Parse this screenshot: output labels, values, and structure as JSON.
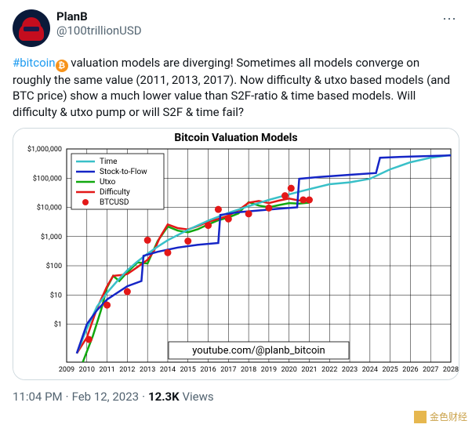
{
  "author": {
    "display_name": "PlanB",
    "handle": "@100trillionUSD",
    "avatar_bg": "#0a1a3a",
    "avatar_cap": "#c40d1e"
  },
  "tweet": {
    "hashtag": "#bitcoin",
    "body_after_hashtag": "  valuation models are diverging! Sometimes all models converge on roughly the same value (2011, 2013, 2017). Now difficulty & utxo based models (and BTC price) show a much lower value than S2F-ratio & time based models. Will difficulty & utxo pump or will S2F & time fail?",
    "time": "11:04 PM",
    "date": "Feb 12, 2023",
    "views_count": "12.3K",
    "views_label": "Views"
  },
  "chart": {
    "title": "Bitcoin Valuation Models",
    "x_axis": {
      "min": 2009,
      "max": 2028,
      "tick_step": 1
    },
    "y_axis": {
      "ticks": [
        1,
        10,
        100,
        1000,
        10000,
        100000,
        1000000
      ],
      "tick_labels": [
        "$1",
        "$10",
        "$100",
        "$1,000",
        "$10,000",
        "$100,000",
        "$1,000,000"
      ]
    },
    "font": {
      "title_size": 14,
      "title_weight": "bold",
      "axis_size": 9,
      "legend_size": 10
    },
    "colors": {
      "background": "#ffffff",
      "grid": "#000000",
      "axis": "#000000",
      "watermark_text": "#000000",
      "time": "#39c0c8",
      "s2f": "#1525c6",
      "utxo": "#11a80f",
      "difficulty": "#e31818",
      "btcusd": "#e31818"
    },
    "line_width": {
      "time": 2.5,
      "s2f": 2.5,
      "utxo": 2.5,
      "difficulty": 2.5
    },
    "marker": {
      "btcusd_radius": 4.5
    },
    "legend": {
      "position": "top-left",
      "items": [
        {
          "label": "Time",
          "type": "line",
          "color_key": "time"
        },
        {
          "label": "Stock-to-Flow",
          "type": "line",
          "color_key": "s2f"
        },
        {
          "label": "Utxo",
          "type": "line",
          "color_key": "utxo"
        },
        {
          "label": "Difficulty",
          "type": "line",
          "color_key": "difficulty"
        },
        {
          "label": "BTCUSD",
          "type": "marker",
          "color_key": "btcusd"
        }
      ]
    },
    "watermark": "youtube.com/@planb_bitcoin",
    "series": {
      "time": [
        [
          2009.5,
          0.1
        ],
        [
          2010.0,
          0.7
        ],
        [
          2010.5,
          4
        ],
        [
          2011.0,
          12
        ],
        [
          2011.5,
          30
        ],
        [
          2012.0,
          70
        ],
        [
          2012.5,
          140
        ],
        [
          2013.0,
          260
        ],
        [
          2013.5,
          450
        ],
        [
          2014.0,
          750
        ],
        [
          2015.0,
          1700
        ],
        [
          2016.0,
          3500
        ],
        [
          2017.0,
          6500
        ],
        [
          2018.0,
          11000
        ],
        [
          2019.0,
          18000
        ],
        [
          2020.0,
          28000
        ],
        [
          2021.0,
          42000
        ],
        [
          2022.0,
          62000
        ],
        [
          2023.0,
          72000
        ],
        [
          2024.0,
          95000
        ],
        [
          2025.0,
          200000
        ],
        [
          2026.0,
          350000
        ],
        [
          2027.0,
          500000
        ],
        [
          2028.0,
          620000
        ]
      ],
      "s2f": [
        [
          2009.5,
          0.1
        ],
        [
          2010.0,
          1.0
        ],
        [
          2010.5,
          3
        ],
        [
          2011.0,
          7
        ],
        [
          2012.0,
          20
        ],
        [
          2012.7,
          30
        ],
        [
          2012.8,
          220
        ],
        [
          2013.5,
          300
        ],
        [
          2014.5,
          420
        ],
        [
          2015.5,
          520
        ],
        [
          2016.5,
          600
        ],
        [
          2016.6,
          5500
        ],
        [
          2017.5,
          6800
        ],
        [
          2018.5,
          7800
        ],
        [
          2019.5,
          9000
        ],
        [
          2020.4,
          10000
        ],
        [
          2020.5,
          95000
        ],
        [
          2021.5,
          110000
        ],
        [
          2023.0,
          130000
        ],
        [
          2024.3,
          150000
        ],
        [
          2024.5,
          500000
        ],
        [
          2026.0,
          550000
        ],
        [
          2028.0,
          600000
        ]
      ],
      "utxo": [
        [
          2009.8,
          0.05
        ],
        [
          2010.3,
          0.4
        ],
        [
          2010.7,
          3
        ],
        [
          2011.0,
          18
        ],
        [
          2011.3,
          45
        ],
        [
          2011.6,
          30
        ],
        [
          2012.0,
          60
        ],
        [
          2012.5,
          130
        ],
        [
          2013.0,
          120
        ],
        [
          2013.5,
          700
        ],
        [
          2014.0,
          2200
        ],
        [
          2014.5,
          1600
        ],
        [
          2015.0,
          1400
        ],
        [
          2015.5,
          1800
        ],
        [
          2016.0,
          2600
        ],
        [
          2016.5,
          3600
        ],
        [
          2017.0,
          4500
        ],
        [
          2017.5,
          6200
        ],
        [
          2018.0,
          15000
        ],
        [
          2018.5,
          11500
        ],
        [
          2019.0,
          10000
        ],
        [
          2019.5,
          12000
        ],
        [
          2020.0,
          14000
        ],
        [
          2020.5,
          13500
        ],
        [
          2021.0,
          14500
        ]
      ],
      "difficulty": [
        [
          2009.5,
          0.1
        ],
        [
          2010.0,
          0.35
        ],
        [
          2010.5,
          3.5
        ],
        [
          2011.0,
          20
        ],
        [
          2011.3,
          45
        ],
        [
          2011.7,
          48
        ],
        [
          2012.0,
          52
        ],
        [
          2012.5,
          90
        ],
        [
          2013.0,
          160
        ],
        [
          2013.3,
          300
        ],
        [
          2013.6,
          900
        ],
        [
          2014.0,
          2600
        ],
        [
          2014.5,
          1950
        ],
        [
          2015.0,
          1750
        ],
        [
          2015.5,
          2300
        ],
        [
          2016.0,
          3200
        ],
        [
          2016.5,
          4000
        ],
        [
          2017.0,
          5200
        ],
        [
          2017.5,
          8000
        ],
        [
          2018.0,
          14500
        ],
        [
          2018.5,
          16500
        ],
        [
          2019.0,
          14000
        ],
        [
          2019.5,
          17000
        ],
        [
          2020.0,
          20000
        ],
        [
          2020.5,
          17000
        ],
        [
          2021.0,
          20000
        ]
      ],
      "btcusd": [
        [
          2010.1,
          0.3
        ],
        [
          2011.0,
          4.5
        ],
        [
          2012.0,
          13
        ],
        [
          2013.0,
          750
        ],
        [
          2014.0,
          280
        ],
        [
          2015.0,
          700
        ],
        [
          2016.0,
          2400
        ],
        [
          2016.5,
          8500
        ],
        [
          2017.0,
          4000
        ],
        [
          2018.0,
          6000
        ],
        [
          2019.0,
          9500
        ],
        [
          2019.8,
          25000
        ],
        [
          2020.1,
          45000
        ],
        [
          2020.7,
          18000
        ],
        [
          2021.0,
          18000
        ]
      ]
    }
  },
  "page_watermark": {
    "label": "金色财经"
  }
}
